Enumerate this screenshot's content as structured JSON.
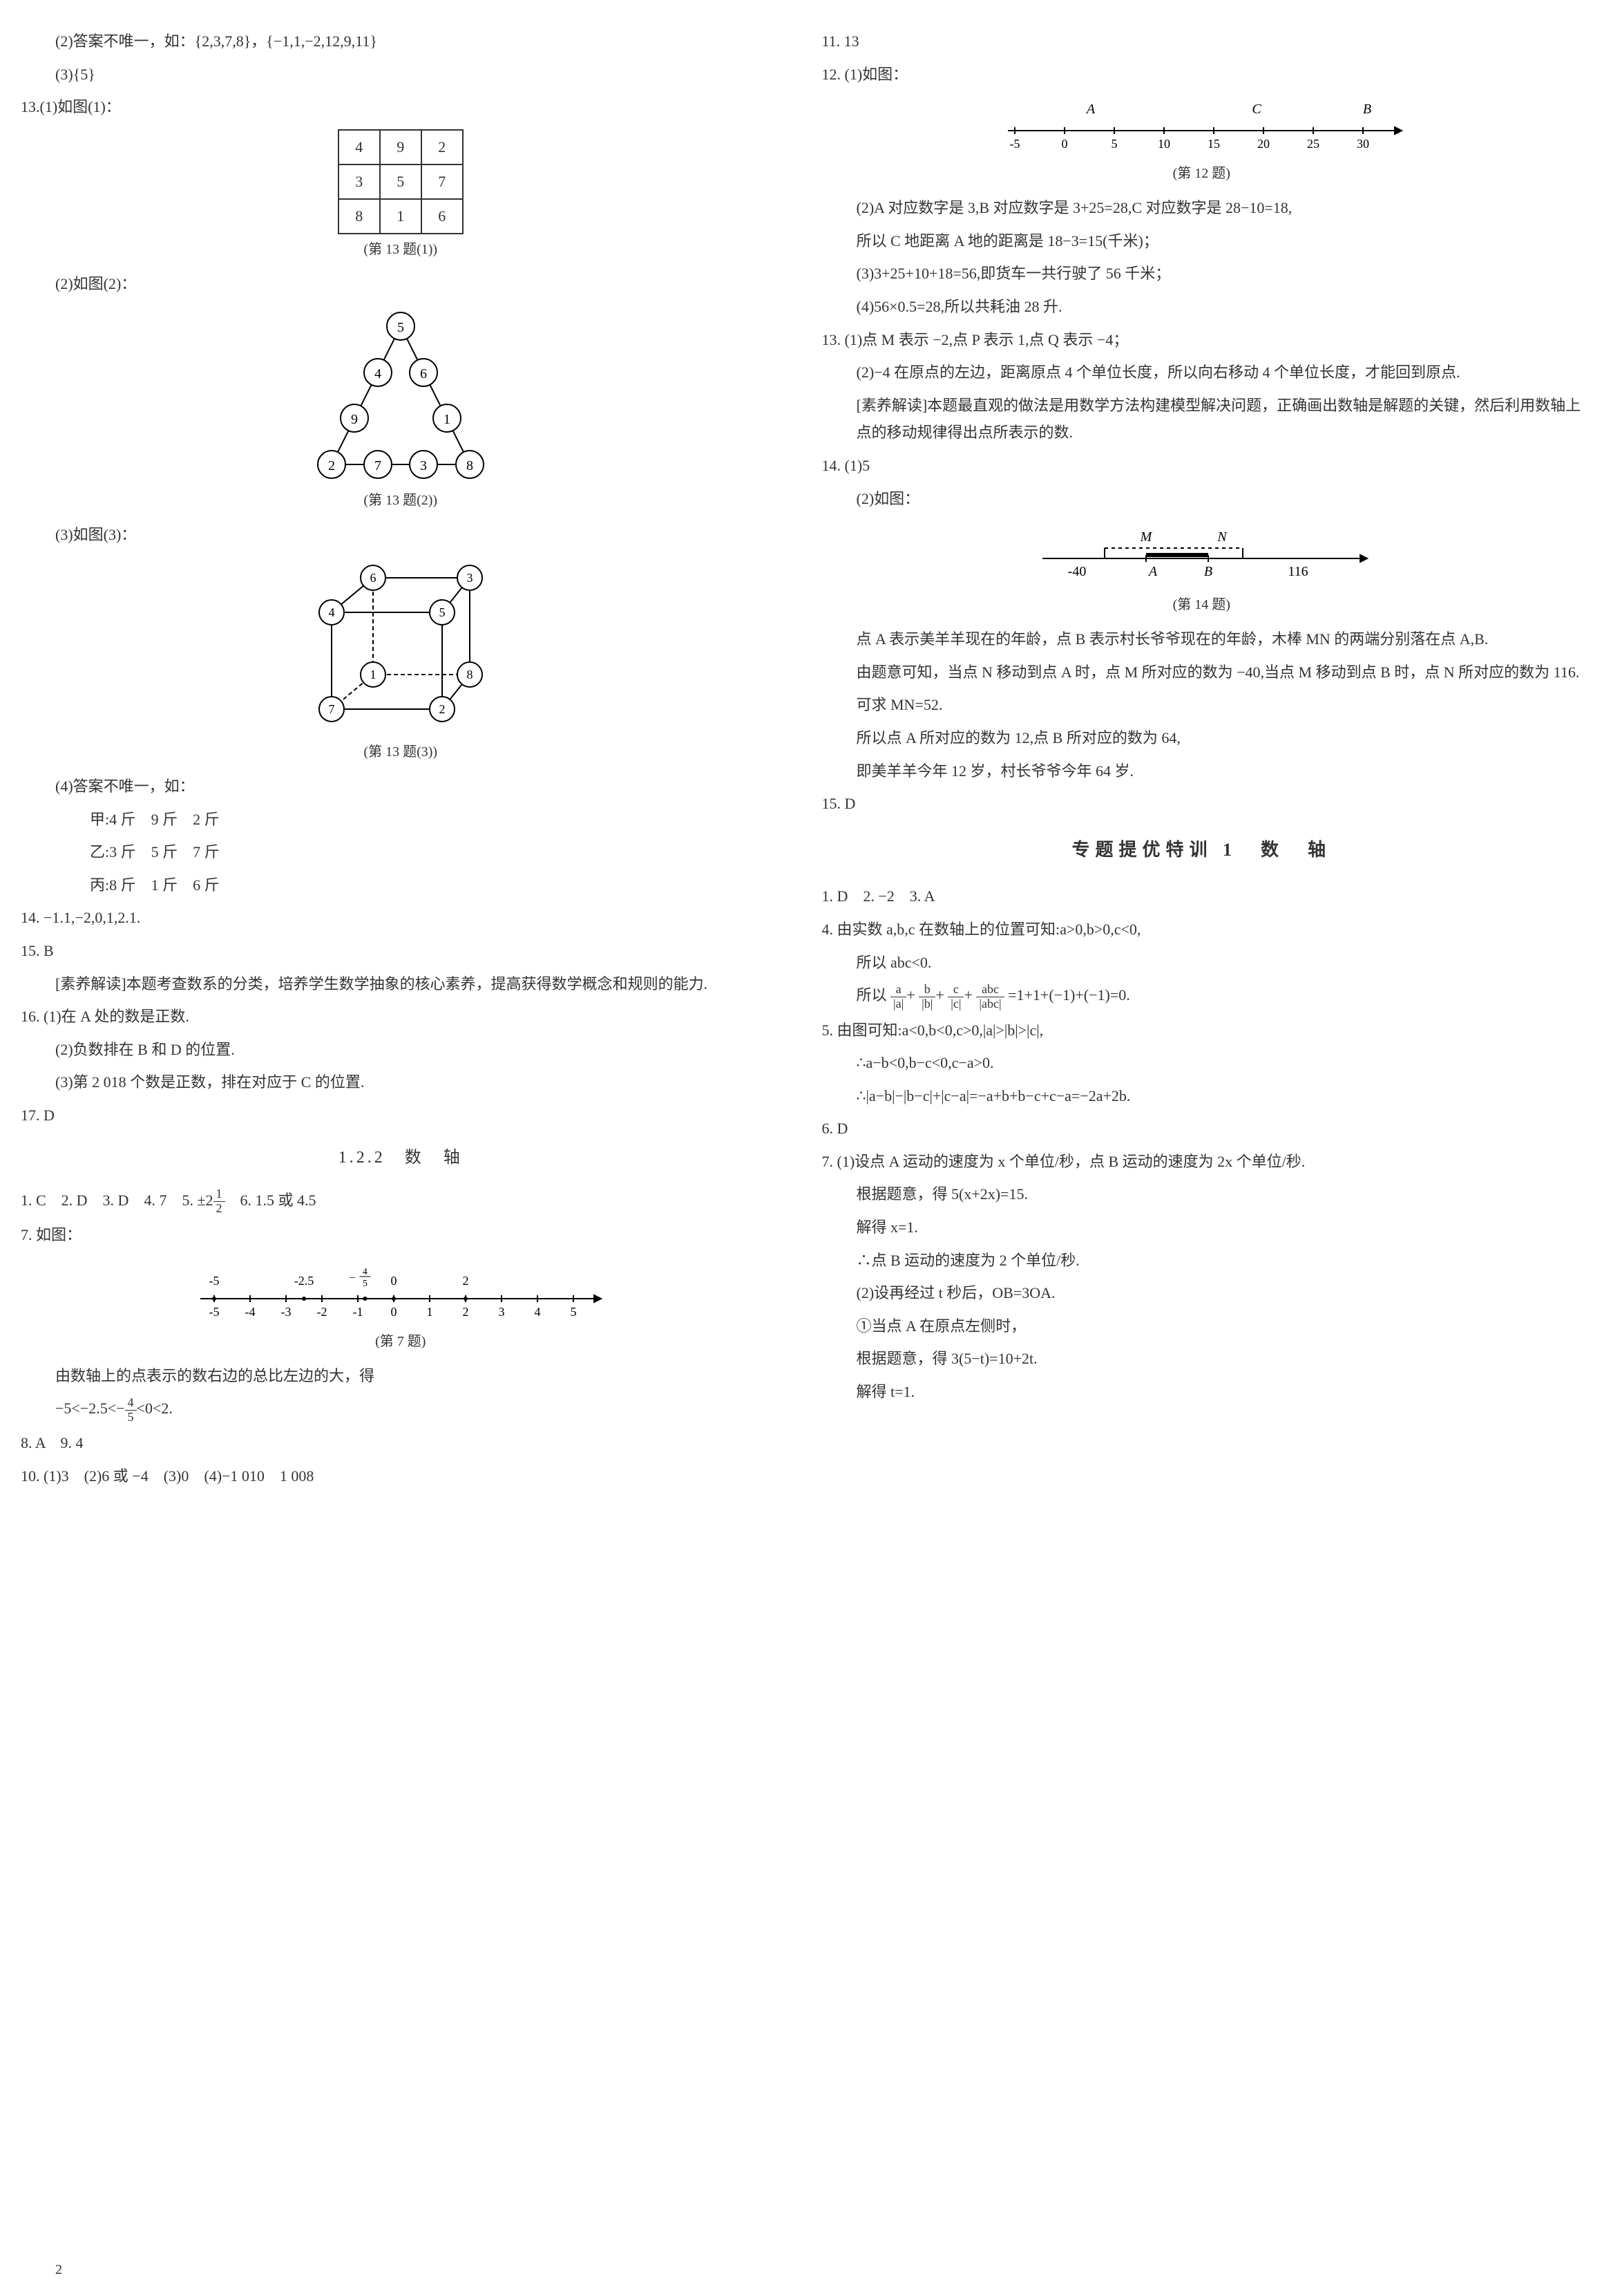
{
  "col1": {
    "q12_2": "(2)答案不唯一，如：{2,3,7,8}，{−1,1,−2,12,9,11}",
    "q12_3": "(3){5}",
    "q13_intro": "13.(1)如图(1)：",
    "table13": [
      [
        "4",
        "9",
        "2"
      ],
      [
        "3",
        "5",
        "7"
      ],
      [
        "8",
        "1",
        "6"
      ]
    ],
    "table13_caption": "(第 13 题(1))",
    "q13_2": "(2)如图(2)：",
    "triangle_nodes": [
      "5",
      "4",
      "6",
      "9",
      "1",
      "2",
      "7",
      "3",
      "8"
    ],
    "triangle_caption": "(第 13 题(2))",
    "q13_3": "(3)如图(3)：",
    "cube_nodes": [
      "6",
      "3",
      "4",
      "5",
      "1",
      "8",
      "7",
      "2"
    ],
    "cube_caption": "(第 13 题(3))",
    "q13_4": "(4)答案不唯一，如：",
    "q13_4a": "甲:4 斤　9 斤　2 斤",
    "q13_4b": "乙:3 斤　5 斤　7 斤",
    "q13_4c": "丙:8 斤　1 斤　6 斤",
    "q14": "14. −1.1,−2,0,1,2.1.",
    "q15": "15. B",
    "q15_note": "[素养解读]本题考查数系的分类，培养学生数学抽象的核心素养，提高获得数学概念和规则的能力.",
    "q16_1": "16. (1)在 A 处的数是正数.",
    "q16_2": "(2)负数排在 B 和 D 的位置.",
    "q16_3": "(3)第 2 018 个数是正数，排在对应于 C 的位置.",
    "q17": "17. D",
    "sec122": "1.2.2　数　轴",
    "q1_6": "1. C　2. D　3. D　4. 7　5. ±2",
    "q1_6b": "　6. 1.5 或 4.5",
    "q7": "7. 如图：",
    "numline7_caption": "(第 7 题)",
    "numline7_ticks": [
      "-5",
      "-4",
      "-3",
      "-2",
      "-1",
      "0",
      "1",
      "2",
      "3",
      "4",
      "5"
    ],
    "numline7_points_top": [
      "-5",
      "",
      "",
      "-2.5",
      "",
      "-4/5",
      "0",
      "",
      "2"
    ],
    "q7_text": "由数轴上的点表示的数右边的总比左边的大，得",
    "q7_result": "−5<−2.5<−4/5<0<2.",
    "q8_9": "8. A　9. 4",
    "q10": "10. (1)3　(2)6 或 −4　(3)0　(4)−1 010　1 008"
  },
  "col2": {
    "q11": "11. 13",
    "q12": "12. (1)如图：",
    "numline12_labels": [
      "A",
      "C",
      "B"
    ],
    "numline12_ticks": [
      "-5",
      "0",
      "5",
      "10",
      "15",
      "20",
      "25",
      "30"
    ],
    "numline12_caption": "(第 12 题)",
    "q12_2": "(2)A 对应数字是 3,B 对应数字是 3+25=28,C 对应数字是 28−10=18,",
    "q12_2b": "所以 C 地距离 A 地的距离是 18−3=15(千米)；",
    "q12_3": "(3)3+25+10+18=56,即货车一共行驶了 56 千米；",
    "q12_4": "(4)56×0.5=28,所以共耗油 28 升.",
    "q13_1": "13. (1)点 M 表示 −2,点 P 表示 1,点 Q 表示 −4；",
    "q13_2": "(2)−4 在原点的左边，距离原点 4 个单位长度，所以向右移动 4 个单位长度，才能回到原点.",
    "q13_note": "[素养解读]本题最直观的做法是用数学方法构建模型解决问题，正确画出数轴是解题的关键，然后利用数轴上点的移动规律得出点所表示的数.",
    "q14_1": "14. (1)5",
    "q14_2": "(2)如图：",
    "numline14_labels": [
      "M",
      "N",
      "A",
      "B"
    ],
    "numline14_values": [
      "-40",
      "116"
    ],
    "numline14_caption": "(第 14 题)",
    "q14_text1": "点 A 表示美羊羊现在的年龄，点 B 表示村长爷爷现在的年龄，木棒 MN 的两端分别落在点 A,B.",
    "q14_text2": "由题意可知，当点 N 移动到点 A 时，点 M 所对应的数为 −40,当点 M 移动到点 B 时，点 N 所对应的数为 116.",
    "q14_text3": "可求 MN=52.",
    "q14_text4": "所以点 A 所对应的数为 12,点 B 所对应的数为 64,",
    "q14_text5": "即美羊羊今年 12 岁，村长爷爷今年 64 岁.",
    "q15": "15. D",
    "sec_sp1": "专题提优特训 1　数　轴",
    "sp_q1_3": "1. D　2. −2　3. A",
    "sp_q4": "4. 由实数 a,b,c 在数轴上的位置可知:a>0,b>0,c<0,",
    "sp_q4b": "所以 abc<0.",
    "sp_q4c_prefix": "所以 ",
    "sp_q4c_suffix": "=1+1+(−1)+(−1)=0.",
    "sp_q5": "5. 由图可知:a<0,b<0,c>0,|a|>|b|>|c|,",
    "sp_q5b": "∴a−b<0,b−c<0,c−a>0.",
    "sp_q5c": "∴|a−b|−|b−c|+|c−a|=−a+b+b−c+c−a=−2a+2b.",
    "sp_q6": "6. D",
    "sp_q7": "7. (1)设点 A 运动的速度为 x 个单位/秒，点 B 运动的速度为 2x 个单位/秒.",
    "sp_q7b": "根据题意，得 5(x+2x)=15.",
    "sp_q7c": "解得 x=1.",
    "sp_q7d": "∴点 B 运动的速度为 2 个单位/秒.",
    "sp_q7_2": "(2)设再经过 t 秒后，OB=3OA.",
    "sp_q7_2b": "①当点 A 在原点左侧时，",
    "sp_q7_2c": "根据题意，得 3(5−t)=10+2t.",
    "sp_q7_2d": "解得 t=1."
  },
  "page_num": "2",
  "colors": {
    "text": "#333333",
    "bg": "#ffffff",
    "line": "#000000",
    "circle_fill": "#ffffff"
  }
}
